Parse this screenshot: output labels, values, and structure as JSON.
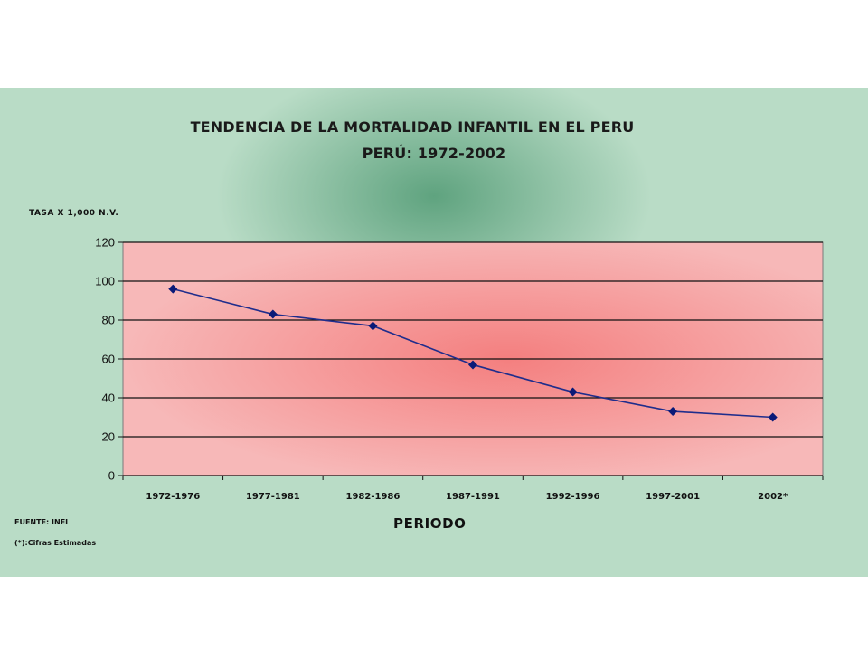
{
  "chart_data": {
    "type": "line",
    "title": "TENDENCIA DE LA MORTALIDAD INFANTIL EN EL PERU",
    "subtitle": "PERÚ: 1972-2002",
    "ylabel": "TASA X 1,000 N.V.",
    "xlabel": "PERIODO",
    "categories": [
      "1972-1976",
      "1977-1981",
      "1982-1986",
      "1987-1991",
      "1992-1996",
      "1997-2001",
      "2002*"
    ],
    "series": [
      {
        "values": [
          96,
          83,
          77,
          57,
          43,
          33,
          30
        ]
      }
    ],
    "ylim": [
      0,
      120
    ],
    "yticks": [
      0,
      20,
      40,
      60,
      80,
      100,
      120
    ],
    "grid": true,
    "line_color": "#1f2d8c",
    "marker_color": "#0a1a78",
    "plot_background": "#f7b8b8",
    "plot_center_color": "#f47f7f",
    "panel_background": "#b9dcc6",
    "source": "FUENTE: INEI",
    "note": "(*):Cifras Estimadas"
  }
}
